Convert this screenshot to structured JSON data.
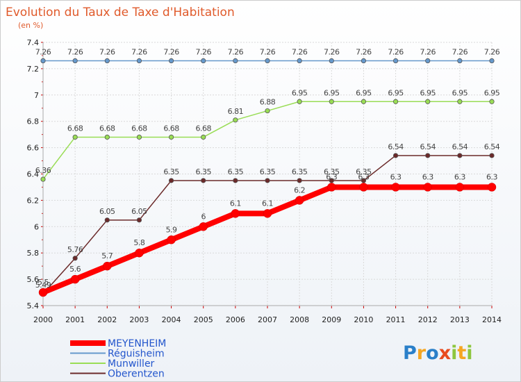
{
  "chart_data": {
    "type": "line",
    "title": "Evolution du Taux de Taxe d'Habitation",
    "subtitle": "(en %)",
    "xlabel": "",
    "ylabel": "",
    "x": [
      "2000",
      "2001",
      "2002",
      "2003",
      "2004",
      "2005",
      "2006",
      "2007",
      "2008",
      "2009",
      "2010",
      "2011",
      "2012",
      "2013",
      "2014"
    ],
    "ylim": [
      5.4,
      7.4
    ],
    "yticks": [
      "5.4",
      "5.6",
      "5.8",
      "6",
      "6.2",
      "6.4",
      "6.6",
      "6.8",
      "7",
      "7.2",
      "7.4"
    ],
    "grid": true,
    "legend_position": "bottom-left",
    "series": [
      {
        "name": "Oberentzen",
        "color": "#6b2a2a",
        "values": [
          5.49,
          5.76,
          6.05,
          6.05,
          6.35,
          6.35,
          6.35,
          6.35,
          6.35,
          6.35,
          6.35,
          6.54,
          6.54,
          6.54,
          6.54
        ],
        "labels": [
          "5.49",
          "5.76",
          "6.05",
          "6.05",
          "6.35",
          "6.35",
          "6.35",
          "6.35",
          "6.35",
          "6.35",
          "6.35",
          "6.54",
          "6.54",
          "6.54",
          "6.54"
        ]
      },
      {
        "name": "Munwiller",
        "color": "#99dd55",
        "values": [
          6.36,
          6.68,
          6.68,
          6.68,
          6.68,
          6.68,
          6.81,
          6.88,
          6.95,
          6.95,
          6.95,
          6.95,
          6.95,
          6.95,
          6.95
        ],
        "labels": [
          "6.36",
          "6.68",
          "6.68",
          "6.68",
          "6.68",
          "6.68",
          "6.81",
          "6.88",
          "6.95",
          "6.95",
          "6.95",
          "6.95",
          "6.95",
          "6.95",
          "6.95"
        ]
      },
      {
        "name": "Réguisheim",
        "color": "#6699cc",
        "values": [
          7.26,
          7.26,
          7.26,
          7.26,
          7.26,
          7.26,
          7.26,
          7.26,
          7.26,
          7.26,
          7.26,
          7.26,
          7.26,
          7.26,
          7.26
        ],
        "labels": [
          "7.26",
          "7.26",
          "7.26",
          "7.26",
          "7.26",
          "7.26",
          "7.26",
          "7.26",
          "7.26",
          "7.26",
          "7.26",
          "7.26",
          "7.26",
          "7.26",
          "7.26"
        ]
      },
      {
        "name": "MEYENHEIM",
        "color": "#ff0000",
        "values": [
          5.5,
          5.6,
          5.7,
          5.8,
          5.9,
          6.0,
          6.1,
          6.1,
          6.2,
          6.3,
          6.3,
          6.3,
          6.3,
          6.3,
          6.3
        ],
        "labels": [
          "5.5",
          "5.6",
          "5.7",
          "5.8",
          "5.9",
          "6",
          "6.1",
          "6.1",
          "6.2",
          "6.3",
          "6.3",
          "6.3",
          "6.3",
          "6.3",
          "6.3"
        ]
      }
    ],
    "legend": [
      "MEYENHEIM",
      "Réguisheim",
      "Munwiller",
      "Oberentzen"
    ]
  },
  "brand": {
    "letters": [
      "P",
      "r",
      "o",
      "x",
      "i",
      "t",
      "i"
    ],
    "colors": [
      "#2a7fc9",
      "#f5a623",
      "#2a7fc9",
      "#e84b1e",
      "#8dc63f",
      "#f5a623",
      "#8dc63f"
    ]
  }
}
